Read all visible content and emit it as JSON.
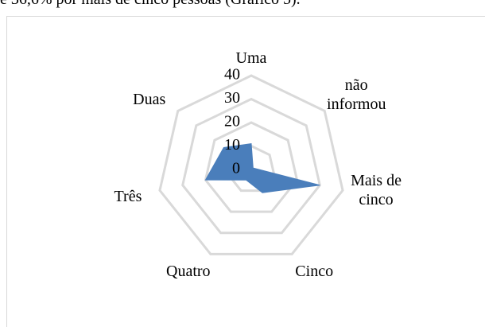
{
  "caption": "e 36,6% por mais de cinco pessoas (Gráfico 5).",
  "chart_data": {
    "type": "radar",
    "categories": [
      "Uma",
      "não informou",
      "Mais de cinco",
      "Cinco",
      "Quatro",
      "Três",
      "Duas"
    ],
    "values": [
      11,
      1,
      30,
      11,
      5,
      20,
      15
    ],
    "color": "#4a7ebb",
    "ylim": [
      0,
      40
    ],
    "yticks": [
      0,
      10,
      20,
      30,
      40
    ],
    "grid": true
  }
}
